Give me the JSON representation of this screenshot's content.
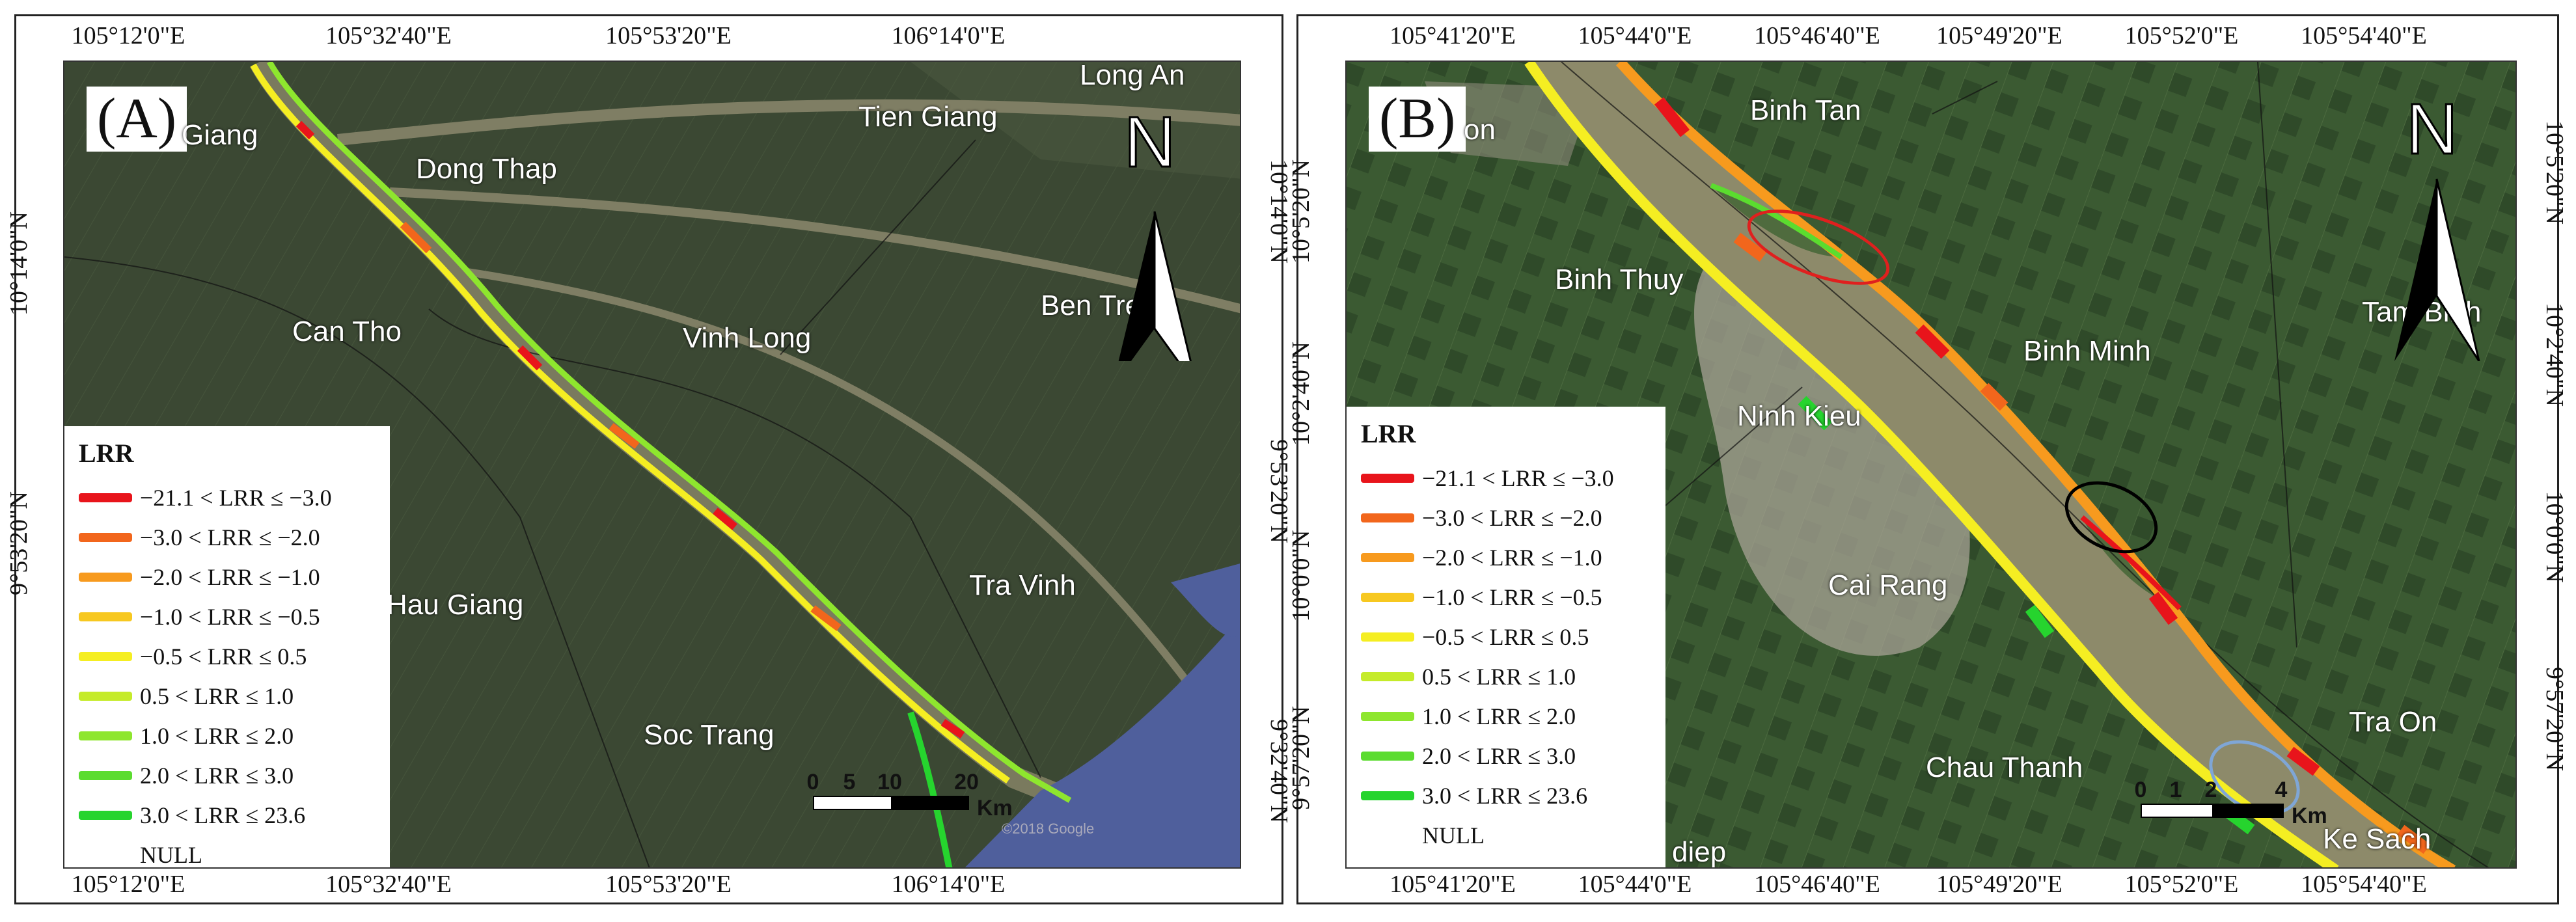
{
  "legend": {
    "title": "LRR",
    "classes": [
      {
        "label": "−21.1 < LRR ≤ −3.0",
        "color": "#e8141b"
      },
      {
        "label": "−3.0 < LRR ≤ −2.0",
        "color": "#f2661c"
      },
      {
        "label": "−2.0 < LRR ≤ −1.0",
        "color": "#f79a1e"
      },
      {
        "label": "−1.0 < LRR ≤ −0.5",
        "color": "#f7c820"
      },
      {
        "label": "−0.5 < LRR ≤ 0.5",
        "color": "#f5ee22"
      },
      {
        "label": "0.5 < LRR ≤ 1.0",
        "color": "#c5eb2a"
      },
      {
        "label": "1.0 < LRR ≤ 2.0",
        "color": "#8ee62e"
      },
      {
        "label": "2.0 < LRR ≤ 3.0",
        "color": "#5bdc2f"
      },
      {
        "label": "3.0 < LRR ≤ 23.6",
        "color": "#26d42e"
      }
    ],
    "null_label": "NULL"
  },
  "panel_a": {
    "label": "(A)",
    "ticks_top": [
      "105°12'0\"E",
      "105°32'40\"E",
      "105°53'20\"E",
      "106°14'0\"E"
    ],
    "ticks_bottom": [
      "105°12'0\"E",
      "105°32'40\"E",
      "105°53'20\"E",
      "106°14'0\"E"
    ],
    "ticks_left": [
      "10°14'0\"N",
      "9°53'20\"N"
    ],
    "ticks_right": [
      "10°14'0\"N",
      "9°53'20\"N",
      "9°32'40\"N"
    ],
    "places": [
      "Giang",
      "Dong Thap",
      "Tien Giang",
      "Long An",
      "Can Tho",
      "Vinh Long",
      "Ben Tre",
      "Hau Giang",
      "Tra Vinh",
      "Soc Trang"
    ],
    "north": "N",
    "scale": {
      "ticks": [
        "0",
        "5",
        "10",
        "20"
      ],
      "unit": "Km"
    },
    "credit": "©2018 Google"
  },
  "panel_b": {
    "label": "(B)",
    "ticks_top": [
      "105°41'20\"E",
      "105°44'0\"E",
      "105°46'40\"E",
      "105°49'20\"E",
      "105°52'0\"E",
      "105°54'40\"E"
    ],
    "ticks_bottom": [
      "105°41'20\"E",
      "105°44'0\"E",
      "105°46'40\"E",
      "105°49'20\"E",
      "105°52'0\"E",
      "105°54'40\"E"
    ],
    "ticks_left": [
      "10°5'20\"N",
      "10°2'40\"N",
      "10°0'0\"N",
      "9°57'20\"N"
    ],
    "ticks_right": [
      "10°5'20\"N",
      "10°2'40\"N",
      "10°0'0\"N",
      "9°57'20\"N"
    ],
    "places": [
      "Binh Tan",
      "on",
      "Binh Thuy",
      "Binh Minh",
      "Tam Binh",
      "Ninh Kieu",
      "Cai Rang",
      "Tra On",
      "Chau Thanh",
      "Ke Sach",
      "diep"
    ],
    "north": "N",
    "scale": {
      "ticks": [
        "0",
        "1",
        "2",
        "4"
      ],
      "unit": "Km"
    }
  },
  "colors": {
    "satellite_dark": "#3d4b34",
    "water": "#8d8a6a",
    "sea": "#4f5f9c"
  }
}
